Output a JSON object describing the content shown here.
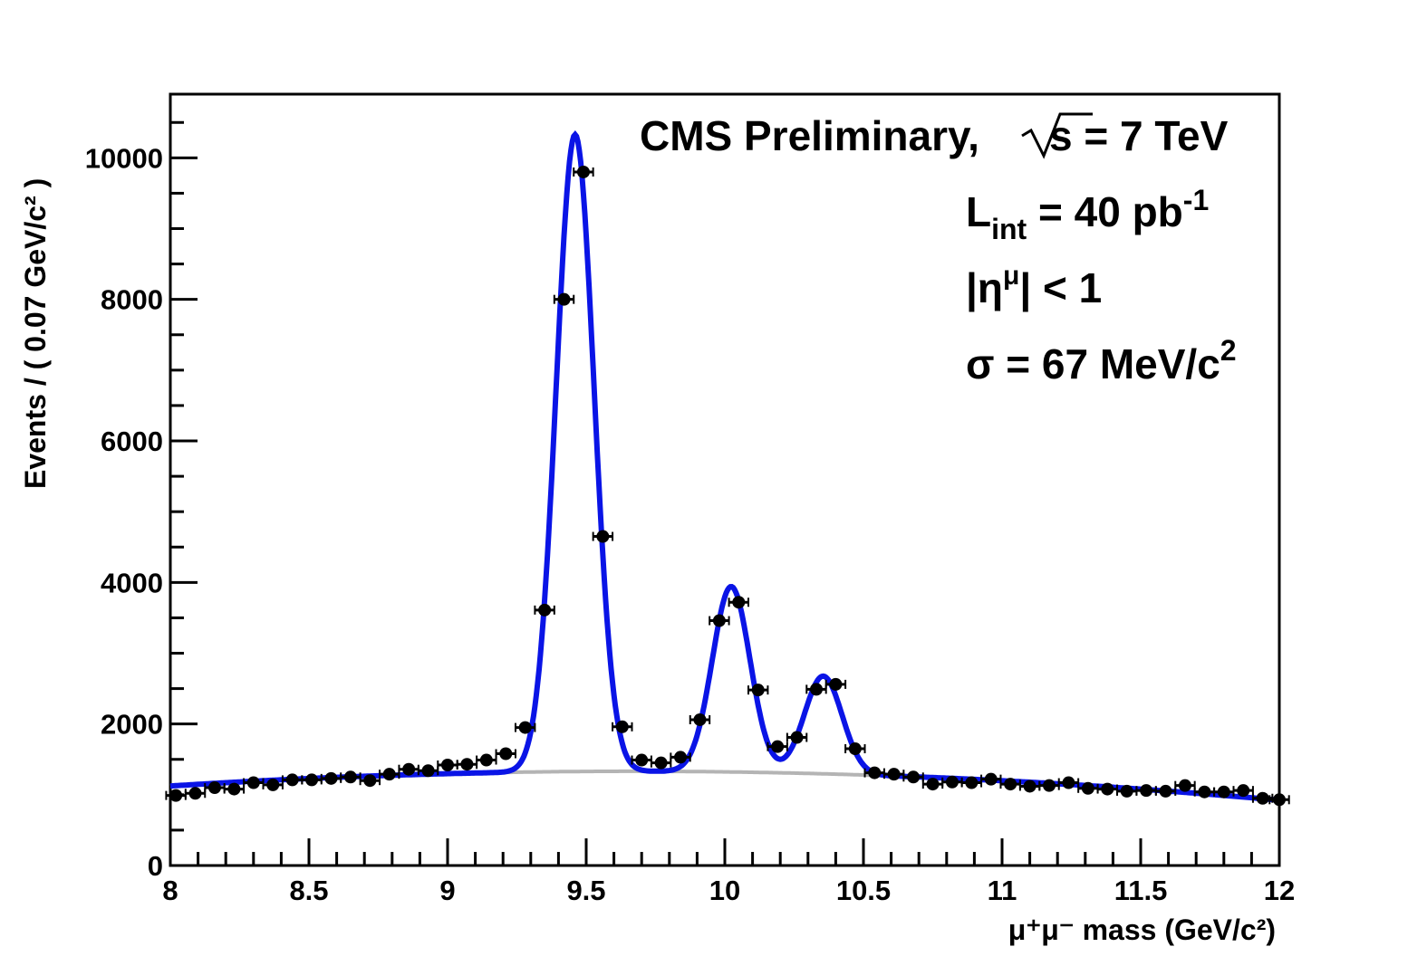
{
  "chart_data": {
    "type": "scatter",
    "xlabel": "μ⁺μ⁻ mass (GeV/c²)",
    "ylabel": "Events / ( 0.07 GeV/c² )",
    "xlim": [
      8,
      12
    ],
    "ylim": [
      0,
      10900
    ],
    "x_ticks": [
      "8",
      "8.5",
      "9",
      "9.5",
      "10",
      "10.5",
      "11",
      "11.5",
      "12"
    ],
    "y_ticks": [
      "0",
      "2000",
      "4000",
      "6000",
      "8000",
      "10000"
    ],
    "grid": false,
    "annotations": {
      "experiment": "CMS Preliminary,",
      "energy": "s = 7 TeV",
      "lumi": "L",
      "lumi_sub": "int",
      "lumi_value": " = 40 pb",
      "lumi_exp": "-1",
      "eta_pre": "|η",
      "eta_sup": "μ",
      "eta_post": "| < 1",
      "sigma": "σ = 67 MeV/c",
      "sigma_exp": "2"
    },
    "colors": {
      "fit": "#0a14e6",
      "background": "#b4b4b4",
      "points": "#000000"
    },
    "series": [
      {
        "type": "points",
        "x": [
          8.02,
          8.09,
          8.16,
          8.23,
          8.3,
          8.37,
          8.44,
          8.51,
          8.58,
          8.65,
          8.72,
          8.79,
          8.86,
          8.93,
          9.0,
          9.07,
          9.14,
          9.21,
          9.28,
          9.35,
          9.42,
          9.49,
          9.56,
          9.63,
          9.7,
          9.77,
          9.84,
          9.91,
          9.98,
          10.05,
          10.12,
          10.19,
          10.26,
          10.33,
          10.4,
          10.47,
          10.54,
          10.61,
          10.68,
          10.75,
          10.82,
          10.89,
          10.96,
          11.03,
          11.1,
          11.17,
          11.24,
          11.31,
          11.38,
          11.45,
          11.52,
          11.59,
          11.66,
          11.73,
          11.8,
          11.87,
          11.94,
          12.0
        ],
        "y": [
          990,
          1020,
          1100,
          1080,
          1170,
          1140,
          1210,
          1210,
          1230,
          1250,
          1200,
          1290,
          1360,
          1340,
          1420,
          1430,
          1490,
          1580,
          1950,
          3610,
          8000,
          9800,
          4650,
          1960,
          1490,
          1450,
          1530,
          2060,
          3460,
          3720,
          2480,
          1680,
          1810,
          2490,
          2560,
          1650,
          1310,
          1290,
          1250,
          1150,
          1180,
          1170,
          1220,
          1150,
          1120,
          1130,
          1170,
          1090,
          1080,
          1050,
          1060,
          1050,
          1130,
          1040,
          1040,
          1060,
          950,
          930
        ]
      }
    ],
    "fit_model": {
      "background": {
        "a": 1040,
        "b": 700,
        "x0": 10.0,
        "c": 235,
        "c2": -30
      },
      "peaks": [
        {
          "mass": 9.46,
          "amplitude": 9000,
          "sigma": 0.068
        },
        {
          "mass": 10.023,
          "amplitude": 2620,
          "sigma": 0.068
        },
        {
          "mass": 10.355,
          "amplitude": 1380,
          "sigma": 0.068
        }
      ]
    }
  }
}
